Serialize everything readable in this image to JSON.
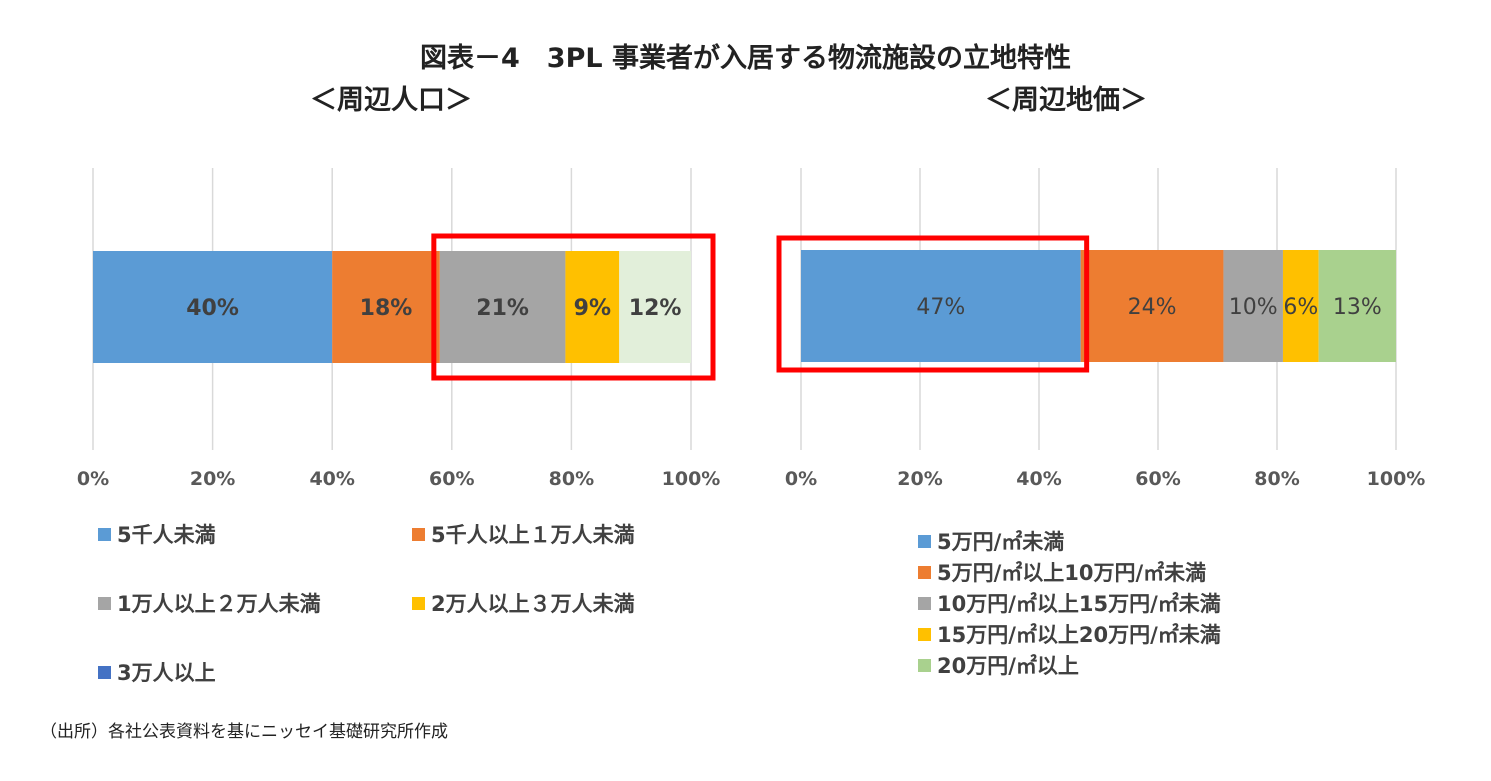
{
  "title": "図表－4　3PL 事業者が入居する物流施設の立地特性",
  "chart_data": [
    {
      "type": "bar",
      "orientation": "horizontal-stacked-100",
      "subtitle": "＜周辺人口＞",
      "xlim": [
        0,
        100
      ],
      "ticks": [
        "0%",
        "20%",
        "40%",
        "60%",
        "80%",
        "100%"
      ],
      "grid": true,
      "legend_position": "bottom",
      "series": [
        {
          "name": "5千人未満",
          "value": 40,
          "label": "40%",
          "color": "#5B9BD5"
        },
        {
          "name": "5千人以上１万人未満",
          "value": 18,
          "label": "18%",
          "color": "#ED7D31"
        },
        {
          "name": "1万人以上２万人未満",
          "value": 21,
          "label": "21%",
          "color": "#A5A5A5"
        },
        {
          "name": "2万人以上３万人未満",
          "value": 9,
          "label": "9%",
          "color": "#FFC000"
        },
        {
          "name": "3万人以上",
          "value": 12,
          "label": "12%",
          "color": "#E2EFDA",
          "legend_color": "#4472C4"
        }
      ],
      "highlight_from": 58,
      "highlight_to": 100
    },
    {
      "type": "bar",
      "orientation": "horizontal-stacked-100",
      "subtitle": "＜周辺地価＞",
      "xlim": [
        0,
        100
      ],
      "ticks": [
        "0%",
        "20%",
        "40%",
        "60%",
        "80%",
        "100%"
      ],
      "grid": true,
      "legend_position": "bottom",
      "series": [
        {
          "name": "5万円/㎡未満",
          "value": 47,
          "label": "47%",
          "color": "#5B9BD5"
        },
        {
          "name": "5万円/㎡以上10万円/㎡未満",
          "value": 24,
          "label": "24%",
          "color": "#ED7D31"
        },
        {
          "name": "10万円/㎡以上15万円/㎡未満",
          "value": 10,
          "label": "10%",
          "color": "#A5A5A5"
        },
        {
          "name": "15万円/㎡以上20万円/㎡未満",
          "value": 6,
          "label": "6%",
          "color": "#FFC000"
        },
        {
          "name": "20万円/㎡以上",
          "value": 13,
          "label": "13%",
          "color": "#A9D18E"
        }
      ],
      "highlight_from": 0,
      "highlight_to": 47
    }
  ],
  "source": "（出所）各社公表資料を基にニッセイ基礎研究所作成",
  "colors": {
    "highlight": "#FF0000",
    "grid": "#D9D9D9"
  }
}
